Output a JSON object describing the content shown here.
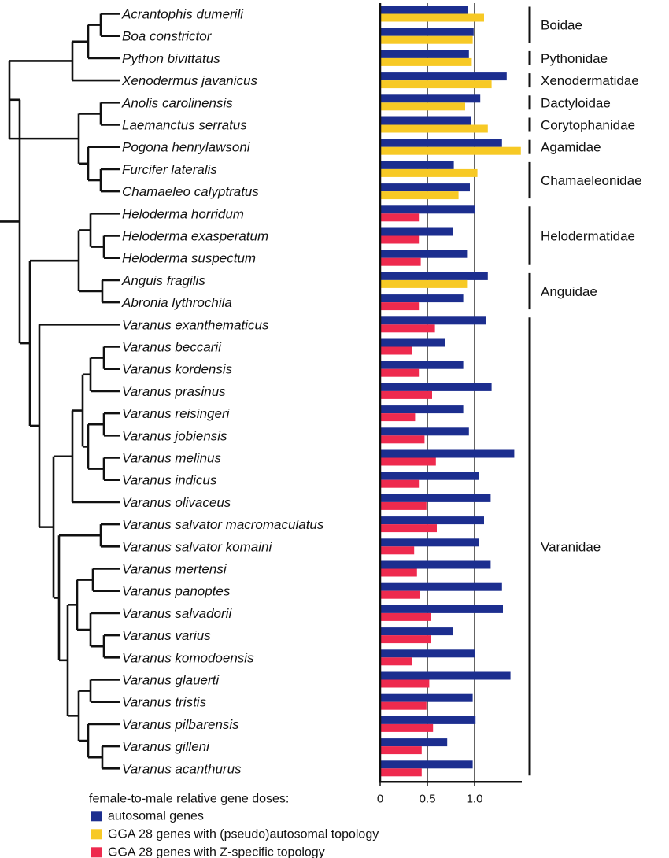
{
  "chart_data": {
    "type": "bar",
    "orientation": "horizontal",
    "xlabel": "female-to-male relative gene doses:",
    "xlim": [
      0,
      1.5
    ],
    "xticks": [
      "0",
      "0.5",
      "1.0"
    ],
    "grid": "vertical lines at 0.5 and 1.0",
    "legend_placement": "bottom",
    "colors": {
      "autosomal": "#1c2e8f",
      "pseudoautosomal": "#f7c925",
      "zspecific": "#ee2a4e",
      "lines": "#111111"
    },
    "series_meta": [
      {
        "key": "autosomal",
        "name": "autosomal genes"
      },
      {
        "key": "pseudoautosomal",
        "name": "GGA 28 genes with (pseudo)autosomal topology"
      },
      {
        "key": "zspecific",
        "name": "GGA 28 genes with Z-specific topology"
      }
    ],
    "species": [
      {
        "name": "Acrantophis dumerili",
        "autosomal": 0.93,
        "second": 1.1,
        "second_type": "pseudoautosomal"
      },
      {
        "name": "Boa constrictor",
        "autosomal": 0.99,
        "second": 0.98,
        "second_type": "pseudoautosomal"
      },
      {
        "name": "Python bivittatus",
        "autosomal": 0.94,
        "second": 0.97,
        "second_type": "pseudoautosomal"
      },
      {
        "name": "Xenodermus javanicus",
        "autosomal": 1.34,
        "second": 1.18,
        "second_type": "pseudoautosomal"
      },
      {
        "name": "Anolis carolinensis",
        "autosomal": 1.06,
        "second": 0.9,
        "second_type": "pseudoautosomal"
      },
      {
        "name": "Laemanctus serratus",
        "autosomal": 0.96,
        "second": 1.14,
        "second_type": "pseudoautosomal"
      },
      {
        "name": "Pogona henrylawsoni",
        "autosomal": 1.29,
        "second": 1.49,
        "second_type": "pseudoautosomal"
      },
      {
        "name": "Furcifer lateralis",
        "autosomal": 0.78,
        "second": 1.03,
        "second_type": "pseudoautosomal"
      },
      {
        "name": "Chamaeleo calyptratus",
        "autosomal": 0.95,
        "second": 0.83,
        "second_type": "pseudoautosomal"
      },
      {
        "name": "Heloderma horridum",
        "autosomal": 1.0,
        "second": 0.41,
        "second_type": "zspecific"
      },
      {
        "name": "Heloderma exasperatum",
        "autosomal": 0.77,
        "second": 0.41,
        "second_type": "zspecific"
      },
      {
        "name": "Heloderma suspectum",
        "autosomal": 0.92,
        "second": 0.43,
        "second_type": "zspecific"
      },
      {
        "name": "Anguis fragilis",
        "autosomal": 1.14,
        "second": 0.92,
        "second_type": "pseudoautosomal"
      },
      {
        "name": "Abronia lythrochila",
        "autosomal": 0.88,
        "second": 0.41,
        "second_type": "zspecific"
      },
      {
        "name": "Varanus exanthematicus",
        "autosomal": 1.12,
        "second": 0.58,
        "second_type": "zspecific"
      },
      {
        "name": "Varanus beccarii",
        "autosomal": 0.69,
        "second": 0.34,
        "second_type": "zspecific"
      },
      {
        "name": "Varanus kordensis",
        "autosomal": 0.88,
        "second": 0.41,
        "second_type": "zspecific"
      },
      {
        "name": "Varanus prasinus",
        "autosomal": 1.18,
        "second": 0.55,
        "second_type": "zspecific"
      },
      {
        "name": "Varanus reisingeri",
        "autosomal": 0.88,
        "second": 0.37,
        "second_type": "zspecific"
      },
      {
        "name": "Varanus jobiensis",
        "autosomal": 0.94,
        "second": 0.47,
        "second_type": "zspecific"
      },
      {
        "name": "Varanus melinus",
        "autosomal": 1.42,
        "second": 0.59,
        "second_type": "zspecific"
      },
      {
        "name": "Varanus indicus",
        "autosomal": 1.05,
        "second": 0.41,
        "second_type": "zspecific"
      },
      {
        "name": "Varanus olivaceus",
        "autosomal": 1.17,
        "second": 0.49,
        "second_type": "zspecific"
      },
      {
        "name": "Varanus salvator macromaculatus",
        "autosomal": 1.1,
        "second": 0.6,
        "second_type": "zspecific"
      },
      {
        "name": "Varanus salvator komaini",
        "autosomal": 1.05,
        "second": 0.36,
        "second_type": "zspecific"
      },
      {
        "name": "Varanus mertensi",
        "autosomal": 1.17,
        "second": 0.39,
        "second_type": "zspecific"
      },
      {
        "name": "Varanus panoptes",
        "autosomal": 1.29,
        "second": 0.42,
        "second_type": "zspecific"
      },
      {
        "name": "Varanus salvadorii",
        "autosomal": 1.3,
        "second": 0.54,
        "second_type": "zspecific"
      },
      {
        "name": "Varanus varius",
        "autosomal": 0.77,
        "second": 0.54,
        "second_type": "zspecific"
      },
      {
        "name": "Varanus komodoensis",
        "autosomal": 1.0,
        "second": 0.34,
        "second_type": "zspecific"
      },
      {
        "name": "Varanus glauerti",
        "autosomal": 1.38,
        "second": 0.52,
        "second_type": "zspecific"
      },
      {
        "name": "Varanus tristis",
        "autosomal": 0.98,
        "second": 0.49,
        "second_type": "zspecific"
      },
      {
        "name": "Varanus pilbarensis",
        "autosomal": 1.01,
        "second": 0.56,
        "second_type": "zspecific"
      },
      {
        "name": "Varanus gilleni",
        "autosomal": 0.71,
        "second": 0.44,
        "second_type": "zspecific"
      },
      {
        "name": "Varanus acanthurus",
        "autosomal": 0.98,
        "second": 0.44,
        "second_type": "zspecific"
      }
    ],
    "families": [
      {
        "name": "Boidae",
        "first": 0,
        "last": 1
      },
      {
        "name": "Pythonidae",
        "first": 2,
        "last": 2
      },
      {
        "name": "Xenodermatidae",
        "first": 3,
        "last": 3
      },
      {
        "name": "Dactyloidae",
        "first": 4,
        "last": 4
      },
      {
        "name": "Corytophanidae",
        "first": 5,
        "last": 5
      },
      {
        "name": "Agamidae",
        "first": 6,
        "last": 6
      },
      {
        "name": "Chamaeleonidae",
        "first": 7,
        "last": 8
      },
      {
        "name": "Helodermatidae",
        "first": 9,
        "last": 11
      },
      {
        "name": "Anguidae",
        "first": 12,
        "last": 13
      },
      {
        "name": "Varanidae",
        "first": 14,
        "last": 34
      }
    ]
  }
}
